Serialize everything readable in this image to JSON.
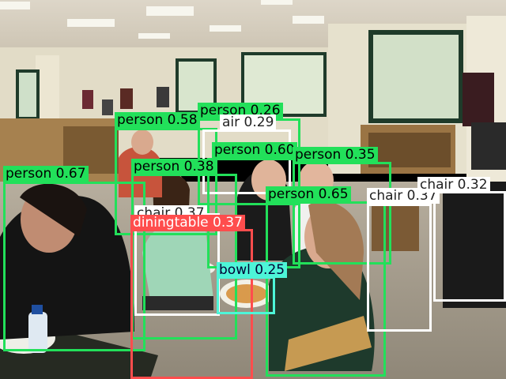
{
  "image": {
    "scene": "library-cafeteria-students-eating-pizza"
  },
  "detections": [
    {
      "label": "person 0.58",
      "color": "#22e05a"
    },
    {
      "label": "air 0.29",
      "color": "#ffffff"
    },
    {
      "label": "person 0.26",
      "color": "#22e05a"
    },
    {
      "label": "person 0.60",
      "color": "#22e05a"
    },
    {
      "label": "person 0.35",
      "color": "#22e05a"
    },
    {
      "label": "person 0.67",
      "color": "#22e05a"
    },
    {
      "label": "person 0.38",
      "color": "#22e05a"
    },
    {
      "label": "person 0.65",
      "color": "#22e05a"
    },
    {
      "label": "chair 0.37",
      "color": "#ffffff"
    },
    {
      "label": "chair 0.32",
      "color": "#ffffff"
    },
    {
      "label": "chair 0.37",
      "color": "#ffffff"
    },
    {
      "label": "diningtable 0.37",
      "color": "#ff4d4d"
    },
    {
      "label": "bowl 0.25",
      "color": "#4df5d8"
    }
  ]
}
